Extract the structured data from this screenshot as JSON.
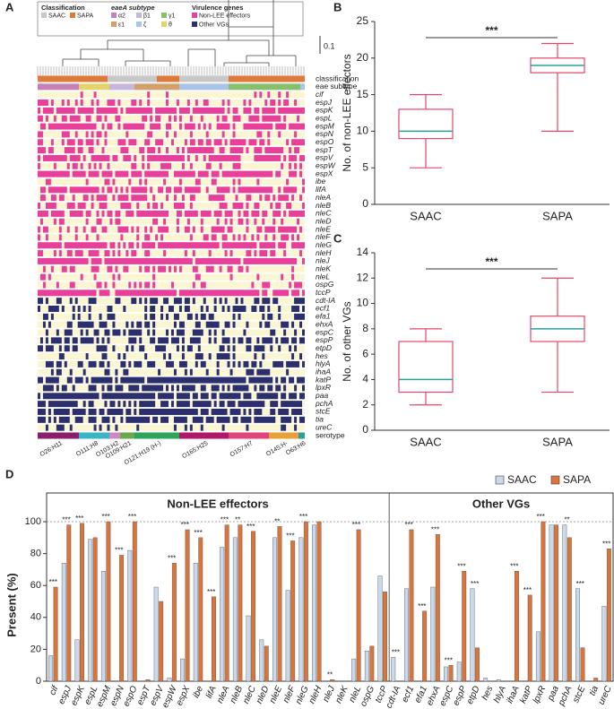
{
  "panel_a": {
    "panel": "A",
    "legend": {
      "classification": {
        "title": "Classification",
        "items": [
          "SAAC",
          "SAPA"
        ]
      },
      "eae": {
        "title": "eaeA subtype",
        "items": [
          "α2",
          "β1",
          "γ1",
          "ε1",
          "ζ",
          "θ"
        ]
      },
      "virulence": {
        "title": "Virulence genes",
        "items": [
          "Non-LEE effectors",
          "Other VGs"
        ]
      }
    },
    "scale_label": "0.1",
    "row_labels": [
      "classification",
      "eae subtype",
      "serotype"
    ],
    "serotypes": [
      "O26:H11",
      "O111:H8",
      "O103:H2",
      "O109:H21",
      "O121:H19 (H-)",
      "O165:H25",
      "O157:H7",
      "O145:H-",
      "O63:H6"
    ]
  },
  "chart_data": [
    {
      "type": "box",
      "panel": "B",
      "ylabel": "No. of non-LEE effectors",
      "categories": [
        "SAAC",
        "SAPA"
      ],
      "boxes": [
        {
          "min": 5,
          "q1": 9,
          "median": 10,
          "q3": 13,
          "max": 15
        },
        {
          "min": 10,
          "q1": 18,
          "median": 19,
          "q3": 20,
          "max": 22
        }
      ],
      "color": "#e5466a",
      "median_color": "#2aa198",
      "ylim": [
        0,
        25
      ],
      "yticks": [
        0,
        5,
        10,
        15,
        20,
        25
      ],
      "significance": "***"
    },
    {
      "type": "box",
      "panel": "C",
      "ylabel": "No. of other VGs",
      "categories": [
        "SAAC",
        "SAPA"
      ],
      "boxes": [
        {
          "min": 2,
          "q1": 3,
          "median": 4,
          "q3": 7,
          "max": 8
        },
        {
          "min": 3,
          "q1": 7,
          "median": 8,
          "q3": 9,
          "max": 12
        }
      ],
      "color": "#e5466a",
      "median_color": "#2aa198",
      "ylim": [
        0,
        14
      ],
      "yticks": [
        0,
        2,
        4,
        6,
        8,
        10,
        12,
        14
      ],
      "significance": "***"
    },
    {
      "type": "bar",
      "panel": "D",
      "ylabel": "Present (%)",
      "ylim": [
        0,
        118
      ],
      "yticks": [
        0,
        20,
        40,
        60,
        80,
        100
      ],
      "reference_line": 100,
      "group_labels": [
        "Non-LEE effectors",
        "Other VGs"
      ],
      "categories": [
        "cif",
        "espJ",
        "espK",
        "espL",
        "espM",
        "espN",
        "espO",
        "espT",
        "espV",
        "espW",
        "espX",
        "ibe",
        "lifA",
        "nleA",
        "nleB",
        "nleC",
        "nleD",
        "nleE",
        "nleF",
        "nleG",
        "nleH",
        "nleJ",
        "nleK",
        "nleL",
        "ospG",
        "tccP",
        "cdt-IA",
        "ecf1",
        "efa1",
        "ehxA",
        "espC",
        "espP",
        "etpD",
        "hes",
        "hlyA",
        "ihaA",
        "katP",
        "lpxR",
        "paa",
        "pchA",
        "stcE",
        "tia",
        "ureC"
      ],
      "series": [
        {
          "name": "SAAC",
          "color": "#c9d8ea",
          "values": [
            16,
            74,
            26,
            89,
            69,
            0,
            82,
            0,
            59,
            2,
            14,
            74,
            0,
            84,
            90,
            41,
            26,
            90,
            57,
            90,
            98,
            0,
            0,
            14,
            19,
            66,
            15,
            58,
            0,
            59,
            9,
            12,
            58,
            2,
            1,
            0,
            0,
            31,
            98,
            98,
            58,
            0,
            47
          ]
        },
        {
          "name": "SAPA",
          "color": "#d9743a",
          "values": [
            59,
            98,
            99,
            90,
            100,
            79,
            100,
            1,
            50,
            74,
            95,
            90,
            53,
            98,
            98,
            94,
            22,
            97,
            88,
            100,
            100,
            1,
            0,
            95,
            22,
            56,
            0,
            95,
            44,
            92,
            10,
            69,
            21,
            0,
            0,
            69,
            54,
            100,
            98,
            90,
            21,
            2,
            83
          ]
        }
      ],
      "significance": [
        "***",
        "***",
        "***",
        null,
        "***",
        "***",
        "***",
        null,
        null,
        "***",
        "***",
        "***",
        "***",
        "***",
        "**",
        "***",
        null,
        "**",
        "***",
        "***",
        null,
        "**",
        null,
        "***",
        null,
        null,
        "***",
        "***",
        "***",
        "***",
        "***",
        "***",
        "***",
        null,
        null,
        "***",
        "***",
        "***",
        null,
        "**",
        "***",
        null,
        "***"
      ]
    }
  ]
}
